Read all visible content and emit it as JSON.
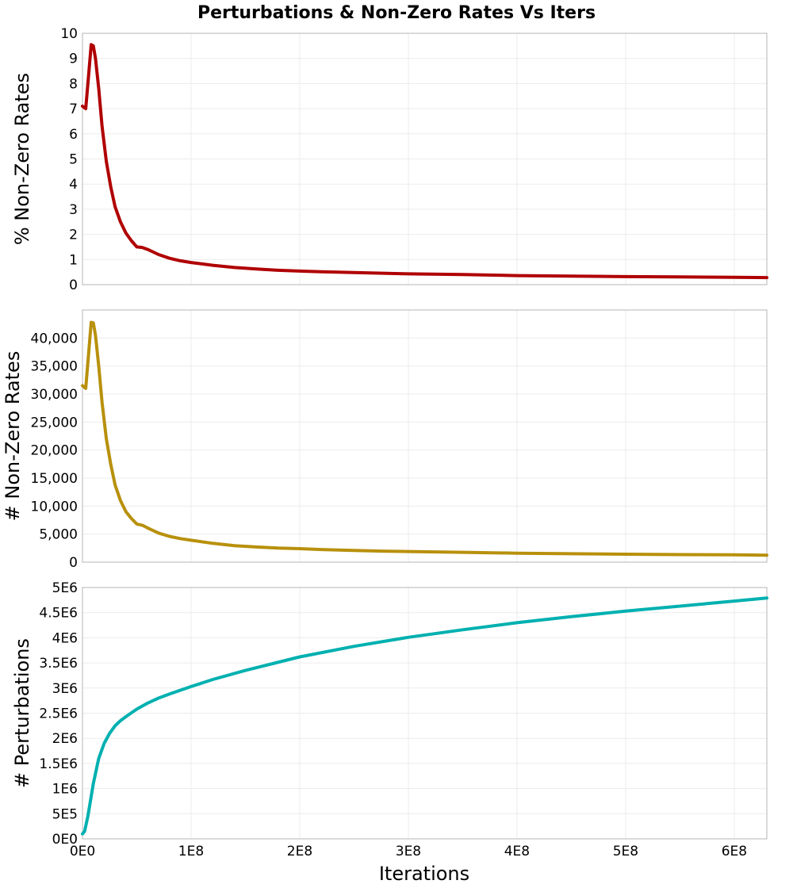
{
  "title": "Perturbations & Non-Zero Rates Vs Iters",
  "x_axis": {
    "label": "Iterations",
    "range": [
      0,
      630000000
    ],
    "ticks": [
      {
        "value": 0,
        "label": "0E0"
      },
      {
        "value": 100000000,
        "label": "1E8"
      },
      {
        "value": 200000000,
        "label": "2E8"
      },
      {
        "value": 300000000,
        "label": "3E8"
      },
      {
        "value": 400000000,
        "label": "4E8"
      },
      {
        "value": 500000000,
        "label": "5E8"
      },
      {
        "value": 600000000,
        "label": "6E8"
      }
    ]
  },
  "chart_data": [
    {
      "type": "line",
      "ylabel": "% Non-Zero Rates",
      "ylim": [
        0,
        10
      ],
      "yticks": [
        {
          "value": 0,
          "label": "0"
        },
        {
          "value": 1,
          "label": "1"
        },
        {
          "value": 2,
          "label": "2"
        },
        {
          "value": 3,
          "label": "3"
        },
        {
          "value": 4,
          "label": "4"
        },
        {
          "value": 5,
          "label": "5"
        },
        {
          "value": 6,
          "label": "6"
        },
        {
          "value": 7,
          "label": "7"
        },
        {
          "value": 8,
          "label": "8"
        },
        {
          "value": 9,
          "label": "9"
        },
        {
          "value": 10,
          "label": "10"
        }
      ],
      "grid": true,
      "color": "#b00000",
      "x": [
        0,
        3000000,
        6000000,
        8000000,
        10000000,
        12000000,
        15000000,
        18000000,
        22000000,
        26000000,
        30000000,
        35000000,
        40000000,
        45000000,
        50000000,
        55000000,
        60000000,
        70000000,
        80000000,
        90000000,
        100000000,
        120000000,
        140000000,
        160000000,
        180000000,
        200000000,
        220000000,
        250000000,
        280000000,
        300000000,
        350000000,
        400000000,
        450000000,
        500000000,
        550000000,
        600000000,
        630000000
      ],
      "y": [
        7.1,
        7.0,
        8.5,
        9.55,
        9.5,
        9.0,
        7.8,
        6.3,
        4.9,
        3.9,
        3.1,
        2.5,
        2.05,
        1.75,
        1.5,
        1.48,
        1.4,
        1.2,
        1.05,
        0.95,
        0.88,
        0.77,
        0.68,
        0.62,
        0.57,
        0.54,
        0.51,
        0.48,
        0.45,
        0.43,
        0.4,
        0.36,
        0.34,
        0.32,
        0.31,
        0.29,
        0.28
      ]
    },
    {
      "type": "line",
      "ylabel": "# Non-Zero Rates",
      "ylim": [
        0,
        45000
      ],
      "yticks": [
        {
          "value": 0,
          "label": "0"
        },
        {
          "value": 5000,
          "label": "5,000"
        },
        {
          "value": 10000,
          "label": "10,000"
        },
        {
          "value": 15000,
          "label": "15,000"
        },
        {
          "value": 20000,
          "label": "20,000"
        },
        {
          "value": 25000,
          "label": "25,000"
        },
        {
          "value": 30000,
          "label": "30,000"
        },
        {
          "value": 35000,
          "label": "35,000"
        },
        {
          "value": 40000,
          "label": "40,000"
        }
      ],
      "grid": true,
      "color": "#b8900c",
      "x": [
        0,
        3000000,
        6000000,
        8000000,
        10000000,
        12000000,
        15000000,
        18000000,
        22000000,
        26000000,
        30000000,
        35000000,
        40000000,
        45000000,
        50000000,
        55000000,
        60000000,
        70000000,
        80000000,
        90000000,
        100000000,
        120000000,
        140000000,
        160000000,
        180000000,
        200000000,
        220000000,
        250000000,
        280000000,
        300000000,
        350000000,
        400000000,
        450000000,
        500000000,
        550000000,
        600000000,
        630000000
      ],
      "y": [
        31500,
        31000,
        38000,
        42800,
        42700,
        40500,
        35000,
        28500,
        22000,
        17500,
        13800,
        11000,
        9000,
        7800,
        6800,
        6600,
        6100,
        5200,
        4600,
        4200,
        3900,
        3350,
        2950,
        2700,
        2500,
        2400,
        2250,
        2100,
        1950,
        1900,
        1750,
        1600,
        1500,
        1420,
        1350,
        1300,
        1250
      ]
    },
    {
      "type": "line",
      "ylabel": "# Perturbations",
      "ylim": [
        0,
        5000000
      ],
      "yticks": [
        {
          "value": 0,
          "label": "0E0"
        },
        {
          "value": 500000,
          "label": "5E5"
        },
        {
          "value": 1000000,
          "label": "1E6"
        },
        {
          "value": 1500000,
          "label": "1.5E6"
        },
        {
          "value": 2000000,
          "label": "2E6"
        },
        {
          "value": 2500000,
          "label": "2.5E6"
        },
        {
          "value": 3000000,
          "label": "3E6"
        },
        {
          "value": 3500000,
          "label": "3.5E6"
        },
        {
          "value": 4000000,
          "label": "4E6"
        },
        {
          "value": 4500000,
          "label": "4.5E6"
        },
        {
          "value": 5000000,
          "label": "5E6"
        }
      ],
      "grid": true,
      "color": "#00b0b0",
      "x": [
        0,
        2000000,
        5000000,
        10000000,
        15000000,
        20000000,
        25000000,
        30000000,
        35000000,
        40000000,
        50000000,
        60000000,
        70000000,
        80000000,
        100000000,
        120000000,
        150000000,
        200000000,
        250000000,
        300000000,
        350000000,
        400000000,
        450000000,
        500000000,
        550000000,
        600000000,
        630000000
      ],
      "y": [
        100000,
        150000,
        450000,
        1100000,
        1600000,
        1900000,
        2100000,
        2250000,
        2350000,
        2430000,
        2580000,
        2700000,
        2800000,
        2880000,
        3030000,
        3170000,
        3350000,
        3620000,
        3830000,
        4010000,
        4160000,
        4300000,
        4420000,
        4530000,
        4630000,
        4730000,
        4790000
      ]
    }
  ]
}
